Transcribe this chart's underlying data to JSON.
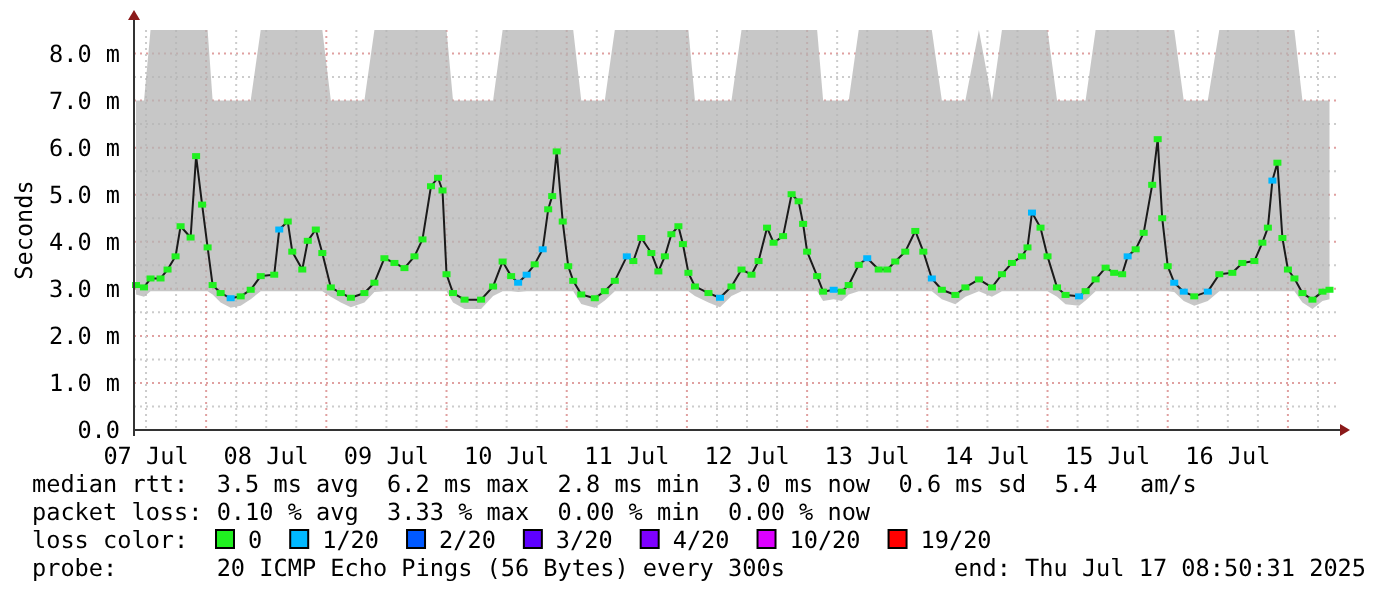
{
  "chart_data": {
    "type": "line",
    "ylabel": "Seconds",
    "legend": "bottom",
    "grid": true,
    "marker": "square",
    "line_style": "solid",
    "xlim": [
      "2025-07-07T09:36",
      "2025-07-17T09:36"
    ],
    "xticks": [
      {
        "value": "2025-07-07T12:00",
        "label": "07 Jul"
      },
      {
        "value": "2025-07-07T18:00",
        "label": null
      },
      {
        "value": "2025-07-08T00:00",
        "label": null
      },
      {
        "value": "2025-07-08T06:00",
        "label": null
      },
      {
        "value": "2025-07-08T12:00",
        "label": "08 Jul"
      },
      {
        "value": "2025-07-08T18:00",
        "label": null
      },
      {
        "value": "2025-07-09T00:00",
        "label": null
      },
      {
        "value": "2025-07-09T06:00",
        "label": null
      },
      {
        "value": "2025-07-09T12:00",
        "label": "09 Jul"
      },
      {
        "value": "2025-07-09T18:00",
        "label": null
      },
      {
        "value": "2025-07-10T00:00",
        "label": null
      },
      {
        "value": "2025-07-10T06:00",
        "label": null
      },
      {
        "value": "2025-07-10T12:00",
        "label": "10 Jul"
      },
      {
        "value": "2025-07-10T18:00",
        "label": null
      },
      {
        "value": "2025-07-11T00:00",
        "label": null
      },
      {
        "value": "2025-07-11T06:00",
        "label": null
      },
      {
        "value": "2025-07-11T12:00",
        "label": "11 Jul"
      },
      {
        "value": "2025-07-11T18:00",
        "label": null
      },
      {
        "value": "2025-07-12T00:00",
        "label": null
      },
      {
        "value": "2025-07-12T06:00",
        "label": null
      },
      {
        "value": "2025-07-12T12:00",
        "label": "12 Jul"
      },
      {
        "value": "2025-07-12T18:00",
        "label": null
      },
      {
        "value": "2025-07-13T00:00",
        "label": null
      },
      {
        "value": "2025-07-13T06:00",
        "label": null
      },
      {
        "value": "2025-07-13T12:00",
        "label": "13 Jul"
      },
      {
        "value": "2025-07-13T18:00",
        "label": null
      },
      {
        "value": "2025-07-14T00:00",
        "label": null
      },
      {
        "value": "2025-07-14T06:00",
        "label": null
      },
      {
        "value": "2025-07-14T12:00",
        "label": "14 Jul"
      },
      {
        "value": "2025-07-14T18:00",
        "label": null
      },
      {
        "value": "2025-07-15T00:00",
        "label": null
      },
      {
        "value": "2025-07-15T06:00",
        "label": null
      },
      {
        "value": "2025-07-15T12:00",
        "label": "15 Jul"
      },
      {
        "value": "2025-07-15T18:00",
        "label": null
      },
      {
        "value": "2025-07-16T00:00",
        "label": null
      },
      {
        "value": "2025-07-16T06:00",
        "label": null
      },
      {
        "value": "2025-07-16T12:00",
        "label": "16 Jul"
      },
      {
        "value": "2025-07-16T18:00",
        "label": null
      },
      {
        "value": "2025-07-17T00:00",
        "label": null
      },
      {
        "value": "2025-07-17T06:00",
        "label": null
      }
    ],
    "ylim": [
      0,
      8.5
    ],
    "yticks": [
      {
        "value": 0,
        "label": "0.0"
      },
      {
        "value": 0.5,
        "label": null
      },
      {
        "value": 1,
        "label": "1.0 m"
      },
      {
        "value": 1.5,
        "label": null
      },
      {
        "value": 2,
        "label": "2.0 m"
      },
      {
        "value": 2.5,
        "label": null
      },
      {
        "value": 3,
        "label": "3.0 m"
      },
      {
        "value": 3.5,
        "label": null
      },
      {
        "value": 4,
        "label": "4.0 m"
      },
      {
        "value": 4.5,
        "label": null
      },
      {
        "value": 5,
        "label": "5.0 m"
      },
      {
        "value": 5.5,
        "label": null
      },
      {
        "value": 6,
        "label": "6.0 m"
      },
      {
        "value": 6.5,
        "label": null
      },
      {
        "value": 7,
        "label": "7.0 m"
      },
      {
        "value": 7.5,
        "label": null
      },
      {
        "value": 8,
        "label": "8.0 m"
      }
    ],
    "x": [
      "2025-07-07T10:00",
      "2025-07-07T11:36",
      "2025-07-07T12:54",
      "2025-07-07T14:54",
      "2025-07-07T16:18",
      "2025-07-07T17:54",
      "2025-07-07T18:54",
      "2025-07-07T20:54",
      "2025-07-07T22:00",
      "2025-07-07T23:12",
      "2025-07-08T00:18",
      "2025-07-08T01:18",
      "2025-07-08T02:54",
      "2025-07-08T04:54",
      "2025-07-08T06:54",
      "2025-07-08T08:54",
      "2025-07-08T10:54",
      "2025-07-08T13:36",
      "2025-07-08T14:36",
      "2025-07-08T16:18",
      "2025-07-08T17:12",
      "2025-07-08T19:12",
      "2025-07-08T20:18",
      "2025-07-08T21:54",
      "2025-07-08T23:12",
      "2025-07-09T00:54",
      "2025-07-09T02:54",
      "2025-07-09T04:54",
      "2025-07-09T07:36",
      "2025-07-09T09:36",
      "2025-07-09T11:36",
      "2025-07-09T13:36",
      "2025-07-09T15:36",
      "2025-07-09T17:36",
      "2025-07-09T19:12",
      "2025-07-09T20:54",
      "2025-07-09T22:18",
      "2025-07-09T23:12",
      "2025-07-10T00:00",
      "2025-07-10T01:18",
      "2025-07-10T03:36",
      "2025-07-10T06:54",
      "2025-07-10T09:18",
      "2025-07-10T11:12",
      "2025-07-10T12:54",
      "2025-07-10T14:18",
      "2025-07-10T16:00",
      "2025-07-10T17:36",
      "2025-07-10T19:12",
      "2025-07-10T20:18",
      "2025-07-10T21:06",
      "2025-07-10T22:00",
      "2025-07-10T23:12",
      "2025-07-11T00:18",
      "2025-07-11T01:18",
      "2025-07-11T02:54",
      "2025-07-11T05:36",
      "2025-07-11T07:36",
      "2025-07-11T09:36",
      "2025-07-11T12:00",
      "2025-07-11T13:18",
      "2025-07-11T14:54",
      "2025-07-11T16:54",
      "2025-07-11T18:18",
      "2025-07-11T19:36",
      "2025-07-11T20:54",
      "2025-07-11T22:18",
      "2025-07-11T23:12",
      "2025-07-12T00:18",
      "2025-07-12T01:36",
      "2025-07-12T04:18",
      "2025-07-12T06:36",
      "2025-07-12T08:54",
      "2025-07-12T10:54",
      "2025-07-12T12:54",
      "2025-07-12T14:18",
      "2025-07-12T16:00",
      "2025-07-12T17:18",
      "2025-07-12T19:12",
      "2025-07-12T20:54",
      "2025-07-12T22:18",
      "2025-07-12T23:12",
      "2025-07-13T00:00",
      "2025-07-13T02:00",
      "2025-07-13T03:12",
      "2025-07-13T05:18",
      "2025-07-13T06:54",
      "2025-07-13T08:18",
      "2025-07-13T10:18",
      "2025-07-13T12:00",
      "2025-07-13T14:18",
      "2025-07-13T16:00",
      "2025-07-13T17:36",
      "2025-07-13T19:36",
      "2025-07-13T21:36",
      "2025-07-13T23:12",
      "2025-07-14T00:54",
      "2025-07-14T02:54",
      "2025-07-14T05:36",
      "2025-07-14T07:36",
      "2025-07-14T10:18",
      "2025-07-14T12:54",
      "2025-07-14T14:54",
      "2025-07-14T16:54",
      "2025-07-14T18:54",
      "2025-07-14T20:00",
      "2025-07-14T20:54",
      "2025-07-14T22:36",
      "2025-07-15T00:00",
      "2025-07-15T01:54",
      "2025-07-15T03:36",
      "2025-07-15T06:18",
      "2025-07-15T07:36",
      "2025-07-15T09:36",
      "2025-07-15T11:36",
      "2025-07-15T13:18",
      "2025-07-15T14:54",
      "2025-07-15T16:00",
      "2025-07-15T17:36",
      "2025-07-15T19:12",
      "2025-07-15T20:54",
      "2025-07-15T22:00",
      "2025-07-15T22:54",
      "2025-07-16T00:00",
      "2025-07-16T01:18",
      "2025-07-16T03:12",
      "2025-07-16T05:18",
      "2025-07-16T08:00",
      "2025-07-16T10:18",
      "2025-07-16T12:54",
      "2025-07-16T14:54",
      "2025-07-16T17:18",
      "2025-07-16T18:54",
      "2025-07-16T20:00",
      "2025-07-16T20:54",
      "2025-07-16T21:54",
      "2025-07-16T22:54",
      "2025-07-17T00:00",
      "2025-07-17T01:18",
      "2025-07-17T02:54",
      "2025-07-17T04:54",
      "2025-07-17T06:54",
      "2025-07-17T08:18"
    ],
    "series": [
      {
        "color": "#1a1a1a",
        "marker": "none",
        "values": [
          3.08,
          3.03,
          3.22,
          3.22,
          3.41,
          3.69,
          4.33,
          4.09,
          5.82,
          4.79,
          3.88,
          3.08,
          2.91,
          2.8,
          2.84,
          2.98,
          3.27,
          3.3,
          4.26,
          4.43,
          3.79,
          3.41,
          4.02,
          4.26,
          3.76,
          3.03,
          2.91,
          2.81,
          2.91,
          3.13,
          3.65,
          3.55,
          3.44,
          3.69,
          4.05,
          5.18,
          5.36,
          5.09,
          3.31,
          2.91,
          2.77,
          2.77,
          3.05,
          3.58,
          3.27,
          3.13,
          3.3,
          3.52,
          3.84,
          4.69,
          4.97,
          5.92,
          4.43,
          3.48,
          3.17,
          2.88,
          2.8,
          2.95,
          3.17,
          3.69,
          3.59,
          4.08,
          3.76,
          3.37,
          3.69,
          4.16,
          4.33,
          3.95,
          3.34,
          3.05,
          2.91,
          2.81,
          3.05,
          3.41,
          3.3,
          3.59,
          4.3,
          3.98,
          4.12,
          5.01,
          4.86,
          4.38,
          3.79,
          3.27,
          2.94,
          2.98,
          2.94,
          3.08,
          3.51,
          3.65,
          3.41,
          3.41,
          3.58,
          3.79,
          4.23,
          3.79,
          3.22,
          2.98,
          2.87,
          3.03,
          3.2,
          3.03,
          3.31,
          3.55,
          3.69,
          3.88,
          4.62,
          4.3,
          3.69,
          3.03,
          2.87,
          2.84,
          2.95,
          3.2,
          3.45,
          3.34,
          3.31,
          3.69,
          3.84,
          4.19,
          5.21,
          6.18,
          4.5,
          3.48,
          3.13,
          2.94,
          2.84,
          2.94,
          3.31,
          3.34,
          3.55,
          3.59,
          3.98,
          4.3,
          5.3,
          5.68,
          4.08,
          3.41,
          3.22,
          2.91,
          2.77,
          2.94,
          2.98
        ],
        "lower": [
          2.88,
          2.83,
          2.95,
          2.95,
          2.95,
          2.95,
          2.95,
          2.95,
          2.95,
          2.95,
          2.95,
          2.88,
          2.71,
          2.6,
          2.64,
          2.78,
          2.95,
          2.95,
          2.95,
          2.95,
          2.95,
          2.95,
          2.95,
          2.95,
          2.95,
          2.83,
          2.71,
          2.61,
          2.71,
          2.93,
          2.95,
          2.95,
          2.95,
          2.95,
          2.95,
          2.95,
          2.95,
          2.95,
          2.95,
          2.71,
          2.57,
          2.57,
          2.85,
          2.95,
          2.95,
          2.93,
          2.95,
          2.95,
          2.95,
          2.95,
          2.95,
          2.95,
          2.95,
          2.95,
          2.95,
          2.68,
          2.6,
          2.75,
          2.95,
          2.95,
          2.95,
          2.95,
          2.95,
          2.95,
          2.95,
          2.95,
          2.95,
          2.95,
          2.95,
          2.85,
          2.71,
          2.61,
          2.85,
          2.95,
          2.95,
          2.95,
          2.95,
          2.95,
          2.95,
          2.95,
          2.95,
          2.95,
          2.95,
          2.95,
          2.74,
          2.78,
          2.74,
          2.88,
          2.95,
          2.95,
          2.95,
          2.95,
          2.95,
          2.95,
          2.95,
          2.95,
          2.95,
          2.78,
          2.67,
          2.83,
          2.95,
          2.83,
          2.95,
          2.95,
          2.95,
          2.95,
          2.95,
          2.95,
          2.95,
          2.83,
          2.67,
          2.64,
          2.75,
          2.95,
          2.95,
          2.95,
          2.95,
          2.95,
          2.95,
          2.95,
          2.95,
          2.95,
          2.95,
          2.95,
          2.93,
          2.74,
          2.64,
          2.74,
          2.95,
          2.95,
          2.95,
          2.95,
          2.95,
          2.95,
          2.95,
          2.95,
          2.95,
          2.95,
          2.95,
          2.71,
          2.57,
          2.74,
          2.78
        ],
        "upper": [
          7.0,
          7.0,
          8.5,
          8.5,
          8.5,
          8.5,
          8.5,
          8.5,
          8.5,
          8.5,
          8.5,
          7.0,
          7.0,
          7.0,
          7.0,
          7.0,
          8.5,
          8.5,
          8.5,
          8.5,
          8.5,
          8.5,
          8.5,
          8.5,
          8.5,
          7.0,
          7.0,
          7.0,
          7.0,
          8.5,
          8.5,
          8.5,
          8.5,
          8.5,
          8.5,
          8.5,
          8.5,
          8.5,
          8.5,
          7.0,
          7.0,
          7.0,
          7.0,
          8.5,
          8.5,
          8.5,
          8.5,
          8.5,
          8.5,
          8.5,
          8.5,
          8.5,
          8.5,
          8.5,
          8.5,
          7.0,
          7.0,
          7.0,
          8.5,
          8.5,
          8.5,
          8.5,
          8.5,
          8.5,
          8.5,
          8.5,
          8.5,
          8.5,
          8.5,
          7.0,
          7.0,
          7.0,
          7.0,
          8.5,
          8.5,
          8.5,
          8.5,
          8.5,
          8.5,
          8.5,
          8.5,
          8.5,
          8.5,
          8.5,
          7.0,
          7.0,
          7.0,
          7.0,
          8.5,
          8.5,
          8.5,
          8.5,
          8.5,
          8.5,
          8.5,
          8.5,
          8.5,
          7.0,
          7.0,
          7.0,
          8.5,
          7.0,
          8.5,
          8.5,
          8.5,
          8.5,
          8.5,
          8.5,
          8.5,
          7.0,
          7.0,
          7.0,
          7.0,
          8.5,
          8.5,
          8.5,
          8.5,
          8.5,
          8.5,
          8.5,
          8.5,
          8.5,
          8.5,
          8.5,
          8.5,
          7.0,
          7.0,
          7.0,
          8.5,
          8.5,
          8.5,
          8.5,
          8.5,
          8.5,
          8.5,
          8.5,
          8.5,
          8.5,
          8.5,
          7.0,
          7.0,
          7.0,
          7.0
        ]
      },
      {
        "type": "scatter",
        "name": "0",
        "color": "#20f020",
        "values": [
          3.08,
          3.03,
          3.22,
          3.22,
          3.41,
          3.69,
          4.33,
          4.09,
          5.82,
          4.79,
          3.88,
          3.08,
          2.91,
          null,
          2.84,
          2.98,
          3.27,
          3.3,
          null,
          4.43,
          3.79,
          3.41,
          4.02,
          4.26,
          3.76,
          3.03,
          2.91,
          2.81,
          2.91,
          3.13,
          3.65,
          3.55,
          3.44,
          3.69,
          4.05,
          5.18,
          5.36,
          5.09,
          3.31,
          2.91,
          2.77,
          2.77,
          3.05,
          3.58,
          3.27,
          null,
          null,
          3.52,
          null,
          4.69,
          4.97,
          5.92,
          4.43,
          3.48,
          3.17,
          2.88,
          2.8,
          2.95,
          3.17,
          null,
          3.59,
          4.08,
          3.76,
          3.37,
          3.69,
          4.16,
          4.33,
          3.95,
          3.34,
          3.05,
          2.91,
          null,
          3.05,
          3.41,
          3.3,
          3.59,
          4.3,
          3.98,
          4.12,
          5.01,
          4.86,
          4.38,
          3.79,
          3.27,
          2.94,
          null,
          2.94,
          3.08,
          3.51,
          null,
          3.41,
          3.41,
          3.58,
          3.79,
          4.23,
          3.79,
          null,
          2.98,
          2.87,
          3.03,
          3.2,
          3.03,
          3.31,
          3.55,
          3.69,
          3.88,
          null,
          4.3,
          3.69,
          3.03,
          2.87,
          null,
          2.95,
          3.2,
          3.45,
          3.34,
          3.31,
          null,
          3.84,
          4.19,
          5.21,
          6.18,
          4.5,
          3.48,
          null,
          null,
          2.84,
          null,
          3.31,
          3.34,
          3.55,
          3.59,
          3.98,
          4.3,
          null,
          5.68,
          4.08,
          3.41,
          3.22,
          2.91,
          2.77,
          2.94,
          2.98
        ]
      },
      {
        "type": "scatter",
        "name": "1/20",
        "color": "#00b8ff",
        "values": [
          null,
          null,
          null,
          null,
          null,
          null,
          null,
          null,
          null,
          null,
          null,
          null,
          null,
          2.8,
          null,
          null,
          null,
          null,
          4.26,
          null,
          null,
          null,
          null,
          null,
          null,
          null,
          null,
          null,
          null,
          null,
          null,
          null,
          null,
          null,
          null,
          null,
          null,
          null,
          null,
          null,
          null,
          null,
          null,
          null,
          null,
          3.13,
          3.3,
          null,
          3.84,
          null,
          null,
          null,
          null,
          null,
          null,
          null,
          null,
          null,
          null,
          3.69,
          null,
          null,
          null,
          null,
          null,
          null,
          null,
          null,
          null,
          null,
          null,
          2.81,
          null,
          null,
          null,
          null,
          null,
          null,
          null,
          null,
          null,
          null,
          null,
          null,
          null,
          2.98,
          null,
          null,
          null,
          3.65,
          null,
          null,
          null,
          null,
          null,
          null,
          3.22,
          null,
          null,
          null,
          null,
          null,
          null,
          null,
          null,
          null,
          4.62,
          null,
          null,
          null,
          null,
          2.84,
          null,
          null,
          null,
          null,
          null,
          3.69,
          null,
          null,
          null,
          null,
          null,
          null,
          3.13,
          2.94,
          null,
          2.94,
          null,
          null,
          null,
          null,
          null,
          null,
          5.3,
          null,
          null,
          null,
          null,
          null,
          null,
          null,
          null
        ]
      },
      {
        "type": "scatter",
        "name": "2/20",
        "color": "#0059ff",
        "values": [
          null,
          null,
          null,
          null,
          null,
          null,
          null,
          null,
          null,
          null,
          null,
          null,
          null,
          null,
          null,
          null,
          null,
          null,
          null,
          null,
          null,
          null,
          null,
          null,
          null,
          null,
          null,
          null,
          null,
          null,
          null,
          null,
          null,
          null,
          null,
          null,
          null,
          null,
          null,
          null,
          null,
          null,
          null,
          null,
          null,
          null,
          null,
          null,
          null,
          null,
          null,
          null,
          null,
          null,
          null,
          null,
          null,
          null,
          null,
          null,
          null,
          null,
          null,
          null,
          null,
          null,
          null,
          null,
          null,
          null,
          null,
          null,
          null,
          null,
          null,
          null,
          null,
          null,
          null,
          null,
          null,
          null,
          null,
          null,
          null,
          null,
          null,
          null,
          null,
          null,
          null,
          null,
          null,
          null,
          null,
          null,
          null,
          null,
          null,
          null,
          null,
          null,
          null,
          null,
          null,
          null,
          null,
          null,
          null,
          null,
          null,
          null,
          null,
          null,
          null,
          null,
          null,
          null,
          null,
          null,
          null,
          null,
          null,
          null,
          null,
          null,
          null,
          null,
          null,
          null,
          null,
          null,
          null,
          null,
          null,
          null,
          null,
          null,
          null,
          null,
          null,
          null,
          null
        ]
      },
      {
        "type": "scatter",
        "name": "3/20",
        "color": "#5e00ff",
        "values": [
          null,
          null,
          null,
          null,
          null,
          null,
          null,
          null,
          null,
          null,
          null,
          null,
          null,
          null,
          null,
          null,
          null,
          null,
          null,
          null,
          null,
          null,
          null,
          null,
          null,
          null,
          null,
          null,
          null,
          null,
          null,
          null,
          null,
          null,
          null,
          null,
          null,
          null,
          null,
          null,
          null,
          null,
          null,
          null,
          null,
          null,
          null,
          null,
          null,
          null,
          null,
          null,
          null,
          null,
          null,
          null,
          null,
          null,
          null,
          null,
          null,
          null,
          null,
          null,
          null,
          null,
          null,
          null,
          null,
          null,
          null,
          null,
          null,
          null,
          null,
          null,
          null,
          null,
          null,
          null,
          null,
          null,
          null,
          null,
          null,
          null,
          null,
          null,
          null,
          null,
          null,
          null,
          null,
          null,
          null,
          null,
          null,
          null,
          null,
          null,
          null,
          null,
          null,
          null,
          null,
          null,
          null,
          null,
          null,
          null,
          null,
          null,
          null,
          null,
          null,
          null,
          null,
          null,
          null,
          null,
          null,
          null,
          null,
          null,
          null,
          null,
          null,
          null,
          null,
          null,
          null,
          null,
          null,
          null,
          null,
          null,
          null,
          null,
          null,
          null,
          null,
          null,
          null
        ]
      },
      {
        "type": "scatter",
        "name": "4/20",
        "color": "#7e00ff",
        "values": [
          null,
          null,
          null,
          null,
          null,
          null,
          null,
          null,
          null,
          null,
          null,
          null,
          null,
          null,
          null,
          null,
          null,
          null,
          null,
          null,
          null,
          null,
          null,
          null,
          null,
          null,
          null,
          null,
          null,
          null,
          null,
          null,
          null,
          null,
          null,
          null,
          null,
          null,
          null,
          null,
          null,
          null,
          null,
          null,
          null,
          null,
          null,
          null,
          null,
          null,
          null,
          null,
          null,
          null,
          null,
          null,
          null,
          null,
          null,
          null,
          null,
          null,
          null,
          null,
          null,
          null,
          null,
          null,
          null,
          null,
          null,
          null,
          null,
          null,
          null,
          null,
          null,
          null,
          null,
          null,
          null,
          null,
          null,
          null,
          null,
          null,
          null,
          null,
          null,
          null,
          null,
          null,
          null,
          null,
          null,
          null,
          null,
          null,
          null,
          null,
          null,
          null,
          null,
          null,
          null,
          null,
          null,
          null,
          null,
          null,
          null,
          null,
          null,
          null,
          null,
          null,
          null,
          null,
          null,
          null,
          null,
          null,
          null,
          null,
          null,
          null,
          null,
          null,
          null,
          null,
          null,
          null,
          null,
          null,
          null,
          null,
          null,
          null,
          null,
          null,
          null,
          null,
          null
        ]
      },
      {
        "type": "scatter",
        "name": "10/20",
        "color": "#dd00ff",
        "values": [
          null,
          null,
          null,
          null,
          null,
          null,
          null,
          null,
          null,
          null,
          null,
          null,
          null,
          null,
          null,
          null,
          null,
          null,
          null,
          null,
          null,
          null,
          null,
          null,
          null,
          null,
          null,
          null,
          null,
          null,
          null,
          null,
          null,
          null,
          null,
          null,
          null,
          null,
          null,
          null,
          null,
          null,
          null,
          null,
          null,
          null,
          null,
          null,
          null,
          null,
          null,
          null,
          null,
          null,
          null,
          null,
          null,
          null,
          null,
          null,
          null,
          null,
          null,
          null,
          null,
          null,
          null,
          null,
          null,
          null,
          null,
          null,
          null,
          null,
          null,
          null,
          null,
          null,
          null,
          null,
          null,
          null,
          null,
          null,
          null,
          null,
          null,
          null,
          null,
          null,
          null,
          null,
          null,
          null,
          null,
          null,
          null,
          null,
          null,
          null,
          null,
          null,
          null,
          null,
          null,
          null,
          null,
          null,
          null,
          null,
          null,
          null,
          null,
          null,
          null,
          null,
          null,
          null,
          null,
          null,
          null,
          null,
          null,
          null,
          null,
          null,
          null,
          null,
          null,
          null,
          null,
          null,
          null,
          null,
          null,
          null,
          null,
          null,
          null,
          null,
          null,
          null,
          null
        ]
      },
      {
        "type": "scatter",
        "name": "19/20",
        "color": "#ff0000",
        "values": [
          null,
          null,
          null,
          null,
          null,
          null,
          null,
          null,
          null,
          null,
          null,
          null,
          null,
          null,
          null,
          null,
          null,
          null,
          null,
          null,
          null,
          null,
          null,
          null,
          null,
          null,
          null,
          null,
          null,
          null,
          null,
          null,
          null,
          null,
          null,
          null,
          null,
          null,
          null,
          null,
          null,
          null,
          null,
          null,
          null,
          null,
          null,
          null,
          null,
          null,
          null,
          null,
          null,
          null,
          null,
          null,
          null,
          null,
          null,
          null,
          null,
          null,
          null,
          null,
          null,
          null,
          null,
          null,
          null,
          null,
          null,
          null,
          null,
          null,
          null,
          null,
          null,
          null,
          null,
          null,
          null,
          null,
          null,
          null,
          null,
          null,
          null,
          null,
          null,
          null,
          null,
          null,
          null,
          null,
          null,
          null,
          null,
          null,
          null,
          null,
          null,
          null,
          null,
          null,
          null,
          null,
          null,
          null,
          null,
          null,
          null,
          null,
          null,
          null,
          null,
          null,
          null,
          null,
          null,
          null,
          null,
          null,
          null,
          null,
          null,
          null,
          null,
          null,
          null,
          null,
          null,
          null,
          null,
          null,
          null,
          null,
          null,
          null,
          null,
          null,
          null,
          null,
          null
        ]
      }
    ],
    "annotations": [
      "median rtt:  3.5 ms avg  6.2 ms max  2.8 ms min  3.0 ms now  0.6 ms sd  5.4   am/s",
      "packet loss: 0.10 % avg  3.33 % max  0.00 % min  0.00 % now",
      "loss color:",
      "probe:       20 ICMP Echo Pings (56 Bytes) every 300s",
      "end: Thu Jul 17 08:50:31 2025"
    ]
  }
}
